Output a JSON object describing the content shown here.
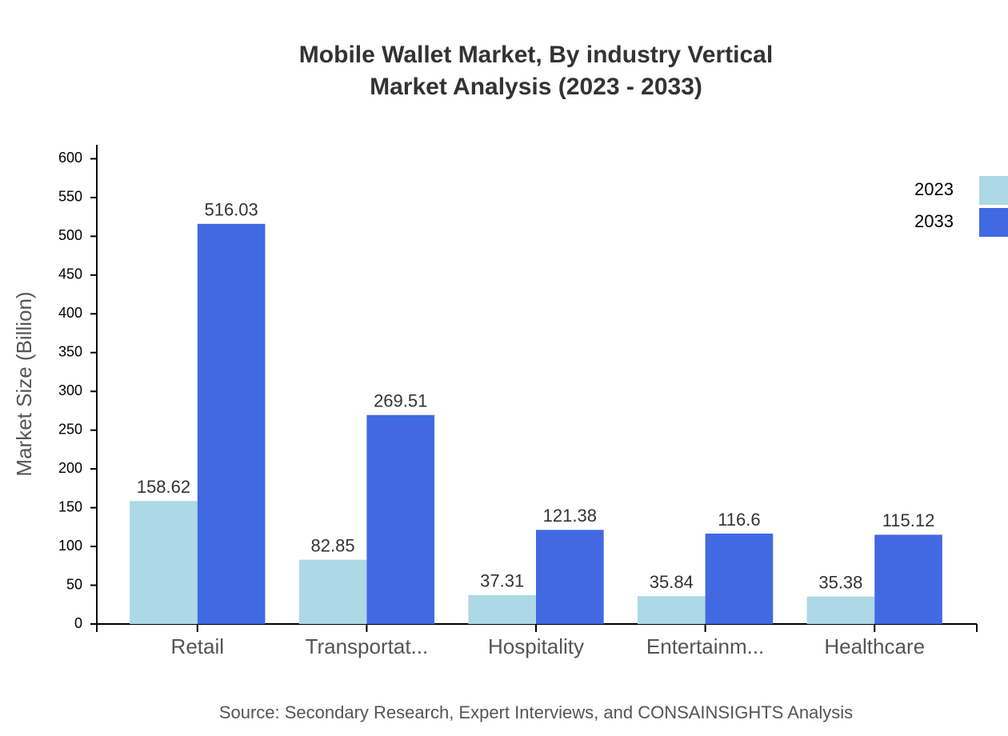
{
  "chart_data": {
    "type": "bar",
    "title": "Mobile Wallet Market, By industry Vertical",
    "subtitle": "Market Analysis (2023 - 2033)",
    "y_label": "Market Size (Billion)",
    "source": "Source: Secondary Research, Expert Interviews, and CONSAINSIGHTS Analysis",
    "categories": [
      "Retail",
      "Transportat...",
      "Hospitality",
      "Entertainm...",
      "Healthcare"
    ],
    "series": [
      {
        "name": "2023",
        "color": "#add8e6",
        "values": [
          158.62,
          82.85,
          37.31,
          35.84,
          35.38
        ]
      },
      {
        "name": "2033",
        "color": "#4169e1",
        "values": [
          516.03,
          269.51,
          121.38,
          116.6,
          115.12
        ]
      }
    ],
    "ylim": [
      0,
      618
    ],
    "yticks": [
      0,
      50,
      100,
      150,
      200,
      250,
      300,
      350,
      400,
      450,
      500,
      550,
      600
    ],
    "legend": "upper right"
  }
}
